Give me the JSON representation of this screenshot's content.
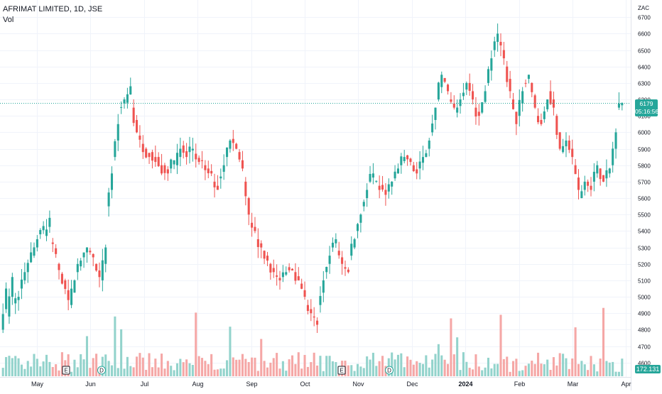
{
  "legend": {
    "title": "AFRIMAT LIMITED, 1D, JSE",
    "volume_label": "Vol"
  },
  "currency": "ZAC",
  "last_price": {
    "value": "6179",
    "countdown": "05:16:56"
  },
  "last_volume": "172.131 K",
  "colors": {
    "up": "#26a69a",
    "down": "#ef5350",
    "up_vol": "#93d3cc",
    "down_vol": "#f5a7a6",
    "grid": "#f0f3fa",
    "axis_text": "#131722"
  },
  "chart_data": {
    "type": "candlestick",
    "symbol": "AFRIMAT LIMITED",
    "interval": "1D",
    "exchange": "JSE",
    "y_ticks": [
      4600,
      4700,
      4800,
      4900,
      5000,
      5100,
      5200,
      5300,
      5400,
      5500,
      5600,
      5700,
      5800,
      5900,
      6000,
      6100,
      6200,
      6300,
      6400,
      6500,
      6600,
      6700
    ],
    "ylim": [
      4560,
      6770
    ],
    "x_ticks": [
      "May",
      "Jun",
      "Jul",
      "Aug",
      "Sep",
      "Oct",
      "Nov",
      "Dec",
      "2024",
      "Feb",
      "Mar",
      "Apr"
    ],
    "events": [
      {
        "label": "E",
        "month": "May"
      },
      {
        "label": "D",
        "month": "Jun"
      },
      {
        "label": "E",
        "month": "Nov"
      },
      {
        "label": "D",
        "month": "Nov"
      }
    ],
    "last_close": 6179,
    "price_path": [
      [
        4800,
        5050
      ],
      [
        4880,
        5120
      ],
      [
        4960,
        5000
      ],
      [
        5050,
        5150
      ],
      [
        5150,
        5270
      ],
      [
        5250,
        5350
      ],
      [
        5380,
        5430
      ],
      [
        5370,
        5480
      ],
      [
        5330,
        5260
      ],
      [
        5200,
        5080
      ],
      [
        5100,
        4980
      ],
      [
        4950,
        5100
      ],
      [
        5150,
        5220
      ],
      [
        5240,
        5300
      ],
      [
        5280,
        5240
      ],
      [
        5200,
        5120
      ],
      [
        5100,
        5300
      ],
      [
        5550,
        5750
      ],
      [
        5850,
        6050
      ],
      [
        6150,
        6200
      ],
      [
        6180,
        6280
      ],
      [
        6150,
        6000
      ],
      [
        5980,
        5880
      ],
      [
        5900,
        5850
      ],
      [
        5880,
        5820
      ],
      [
        5850,
        5750
      ],
      [
        5800,
        5750
      ],
      [
        5780,
        5830
      ],
      [
        5800,
        5900
      ],
      [
        5920,
        5850
      ],
      [
        5880,
        5900
      ],
      [
        5870,
        5820
      ],
      [
        5830,
        5770
      ],
      [
        5780,
        5750
      ],
      [
        5700,
        5650
      ],
      [
        5720,
        5800
      ],
      [
        5850,
        5950
      ],
      [
        5960,
        5900
      ],
      [
        5880,
        5780
      ],
      [
        5700,
        5500
      ],
      [
        5450,
        5400
      ],
      [
        5350,
        5300
      ],
      [
        5280,
        5220
      ],
      [
        5200,
        5150
      ],
      [
        5130,
        5100
      ],
      [
        5120,
        5150
      ],
      [
        5180,
        5160
      ],
      [
        5150,
        5100
      ],
      [
        5080,
        5000
      ],
      [
        4950,
        4900
      ],
      [
        4880,
        4830
      ],
      [
        4950,
        5100
      ],
      [
        5150,
        5250
      ],
      [
        5300,
        5350
      ],
      [
        5280,
        5200
      ],
      [
        5180,
        5150
      ],
      [
        5250,
        5350
      ],
      [
        5400,
        5500
      ],
      [
        5550,
        5650
      ],
      [
        5700,
        5750
      ],
      [
        5700,
        5650
      ],
      [
        5680,
        5620
      ],
      [
        5640,
        5700
      ],
      [
        5720,
        5780
      ],
      [
        5800,
        5850
      ],
      [
        5860,
        5820
      ],
      [
        5800,
        5750
      ],
      [
        5780,
        5850
      ],
      [
        5850,
        5950
      ],
      [
        6000,
        6150
      ],
      [
        6200,
        6350
      ],
      [
        6330,
        6250
      ],
      [
        6200,
        6150
      ],
      [
        6120,
        6200
      ],
      [
        6220,
        6300
      ],
      [
        6300,
        6200
      ],
      [
        6150,
        6100
      ],
      [
        6120,
        6250
      ],
      [
        6300,
        6450
      ],
      [
        6500,
        6600
      ],
      [
        6550,
        6450
      ],
      [
        6400,
        6250
      ],
      [
        6200,
        6050
      ],
      [
        6100,
        6250
      ],
      [
        6300,
        6350
      ],
      [
        6300,
        6150
      ],
      [
        6100,
        6050
      ],
      [
        6080,
        6200
      ],
      [
        6250,
        6150
      ],
      [
        6100,
        5900
      ],
      [
        5880,
        5950
      ],
      [
        5950,
        5850
      ],
      [
        5800,
        5650
      ],
      [
        5600,
        5700
      ],
      [
        5700,
        5650
      ],
      [
        5700,
        5800
      ],
      [
        5780,
        5700
      ],
      [
        5720,
        5780
      ],
      [
        5800,
        6000
      ],
      [
        6150,
        6179
      ]
    ]
  }
}
